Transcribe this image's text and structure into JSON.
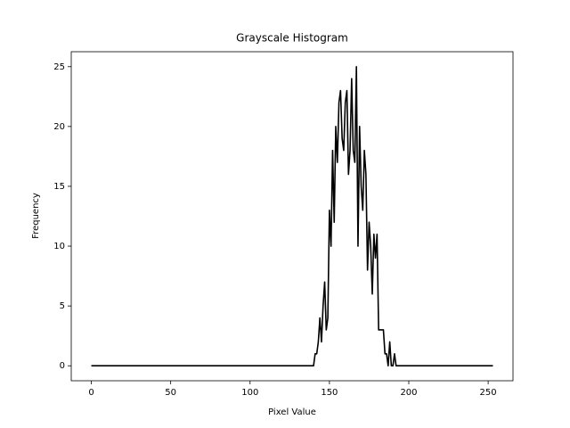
{
  "chart_data": {
    "type": "line",
    "title": "Grayscale Histogram",
    "x_label": "Pixel Value",
    "y_label": "Frequency",
    "color": "#000000",
    "x": [
      0,
      1,
      2,
      3,
      4,
      5,
      6,
      7,
      8,
      9,
      10,
      11,
      12,
      13,
      14,
      15,
      16,
      17,
      18,
      19,
      20,
      21,
      22,
      23,
      24,
      25,
      26,
      27,
      28,
      29,
      30,
      31,
      32,
      33,
      34,
      35,
      36,
      37,
      38,
      39,
      40,
      41,
      42,
      43,
      44,
      45,
      46,
      47,
      48,
      49,
      50,
      51,
      52,
      53,
      54,
      55,
      56,
      57,
      58,
      59,
      60,
      61,
      62,
      63,
      64,
      65,
      66,
      67,
      68,
      69,
      70,
      71,
      72,
      73,
      74,
      75,
      76,
      77,
      78,
      79,
      80,
      81,
      82,
      83,
      84,
      85,
      86,
      87,
      88,
      89,
      90,
      91,
      92,
      93,
      94,
      95,
      96,
      97,
      98,
      99,
      100,
      101,
      102,
      103,
      104,
      105,
      106,
      107,
      108,
      109,
      110,
      111,
      112,
      113,
      114,
      115,
      116,
      117,
      118,
      119,
      120,
      121,
      122,
      123,
      124,
      125,
      126,
      127,
      128,
      129,
      130,
      131,
      132,
      133,
      134,
      135,
      136,
      137,
      138,
      139,
      140,
      141,
      142,
      143,
      144,
      145,
      146,
      147,
      148,
      149,
      150,
      151,
      152,
      153,
      154,
      155,
      156,
      157,
      158,
      159,
      160,
      161,
      162,
      163,
      164,
      165,
      166,
      167,
      168,
      169,
      170,
      171,
      172,
      173,
      174,
      175,
      176,
      177,
      178,
      179,
      180,
      181,
      182,
      183,
      184,
      185,
      186,
      187,
      188,
      189,
      190,
      191,
      192,
      193,
      194,
      195,
      196,
      197,
      198,
      199,
      200,
      201,
      202,
      203,
      204,
      205,
      206,
      207,
      208,
      209,
      210,
      211,
      212,
      213,
      214,
      215,
      216,
      217,
      218,
      219,
      220,
      221,
      222,
      223,
      224,
      225,
      226,
      227,
      228,
      229,
      230,
      231,
      232,
      233,
      234,
      235,
      236,
      237,
      238,
      239,
      240,
      241,
      242,
      243,
      244,
      245,
      246,
      247,
      248,
      249,
      250,
      251,
      252,
      253
    ],
    "values": [
      0,
      0,
      0,
      0,
      0,
      0,
      0,
      0,
      0,
      0,
      0,
      0,
      0,
      0,
      0,
      0,
      0,
      0,
      0,
      0,
      0,
      0,
      0,
      0,
      0,
      0,
      0,
      0,
      0,
      0,
      0,
      0,
      0,
      0,
      0,
      0,
      0,
      0,
      0,
      0,
      0,
      0,
      0,
      0,
      0,
      0,
      0,
      0,
      0,
      0,
      0,
      0,
      0,
      0,
      0,
      0,
      0,
      0,
      0,
      0,
      0,
      0,
      0,
      0,
      0,
      0,
      0,
      0,
      0,
      0,
      0,
      0,
      0,
      0,
      0,
      0,
      0,
      0,
      0,
      0,
      0,
      0,
      0,
      0,
      0,
      0,
      0,
      0,
      0,
      0,
      0,
      0,
      0,
      0,
      0,
      0,
      0,
      0,
      0,
      0,
      0,
      0,
      0,
      0,
      0,
      0,
      0,
      0,
      0,
      0,
      0,
      0,
      0,
      0,
      0,
      0,
      0,
      0,
      0,
      0,
      0,
      0,
      0,
      0,
      0,
      0,
      0,
      0,
      0,
      0,
      0,
      0,
      0,
      0,
      0,
      0,
      0,
      0,
      0,
      0,
      0,
      1,
      1,
      2,
      4,
      2,
      5,
      7,
      3,
      4,
      13,
      10,
      18,
      12,
      20,
      17,
      22,
      23,
      19,
      18,
      22,
      23,
      16,
      18,
      24,
      18,
      17,
      25,
      10,
      20,
      15,
      13,
      18,
      16,
      8,
      12,
      10,
      6,
      11,
      9,
      11,
      3,
      3,
      3,
      3,
      1,
      1,
      0,
      2,
      0,
      0,
      1,
      0,
      0,
      0,
      0,
      0,
      0,
      0,
      0,
      0,
      0,
      0,
      0,
      0,
      0,
      0,
      0,
      0,
      0,
      0,
      0,
      0,
      0,
      0,
      0,
      0,
      0,
      0,
      0,
      0,
      0,
      0,
      0,
      0,
      0,
      0,
      0,
      0,
      0,
      0,
      0,
      0,
      0,
      0,
      0,
      0,
      0,
      0,
      0,
      0,
      0,
      0,
      0,
      0,
      0,
      0,
      0,
      0,
      0,
      0,
      0,
      0,
      0
    ],
    "xlim": [
      -12.65,
      265.65
    ],
    "ylim": [
      -1.25,
      26.25
    ],
    "xticks": [
      0,
      50,
      100,
      150,
      200,
      250
    ],
    "yticks": [
      0,
      5,
      10,
      15,
      20,
      25
    ]
  }
}
